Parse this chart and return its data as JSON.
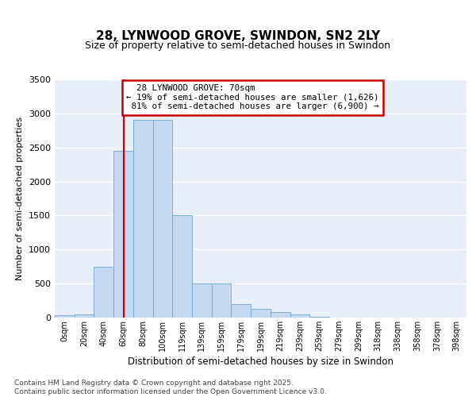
{
  "title": "28, LYNWOOD GROVE, SWINDON, SN2 2LY",
  "subtitle": "Size of property relative to semi-detached houses in Swindon",
  "xlabel": "Distribution of semi-detached houses by size in Swindon",
  "ylabel": "Number of semi-detached properties",
  "property_label": "28 LYNWOOD GROVE: 70sqm",
  "pct_smaller": 19,
  "pct_larger": 81,
  "count_smaller": 1626,
  "count_larger": 6900,
  "bin_labels": [
    "0sqm",
    "20sqm",
    "40sqm",
    "60sqm",
    "80sqm",
    "100sqm",
    "119sqm",
    "139sqm",
    "159sqm",
    "179sqm",
    "199sqm",
    "219sqm",
    "239sqm",
    "259sqm",
    "279sqm",
    "299sqm",
    "318sqm",
    "338sqm",
    "358sqm",
    "378sqm",
    "398sqm"
  ],
  "bar_values": [
    30,
    50,
    750,
    2450,
    2900,
    2900,
    1500,
    500,
    500,
    200,
    130,
    80,
    50,
    10,
    5,
    0,
    0,
    0,
    0,
    0,
    0
  ],
  "bar_color": "#c5d8f0",
  "bar_edge_color": "#7aafd4",
  "vline_color": "#cc0000",
  "vline_pos": 3.5,
  "annotation_box_color": "#cc0000",
  "ylim": [
    0,
    3500
  ],
  "yticks": [
    0,
    500,
    1000,
    1500,
    2000,
    2500,
    3000,
    3500
  ],
  "bg_color": "#e8eef8",
  "grid_color": "#ffffff",
  "footer": "Contains HM Land Registry data © Crown copyright and database right 2025.\nContains public sector information licensed under the Open Government Licence v3.0.",
  "fig_bg": "#ffffff",
  "title_fontsize": 11,
  "subtitle_fontsize": 9
}
